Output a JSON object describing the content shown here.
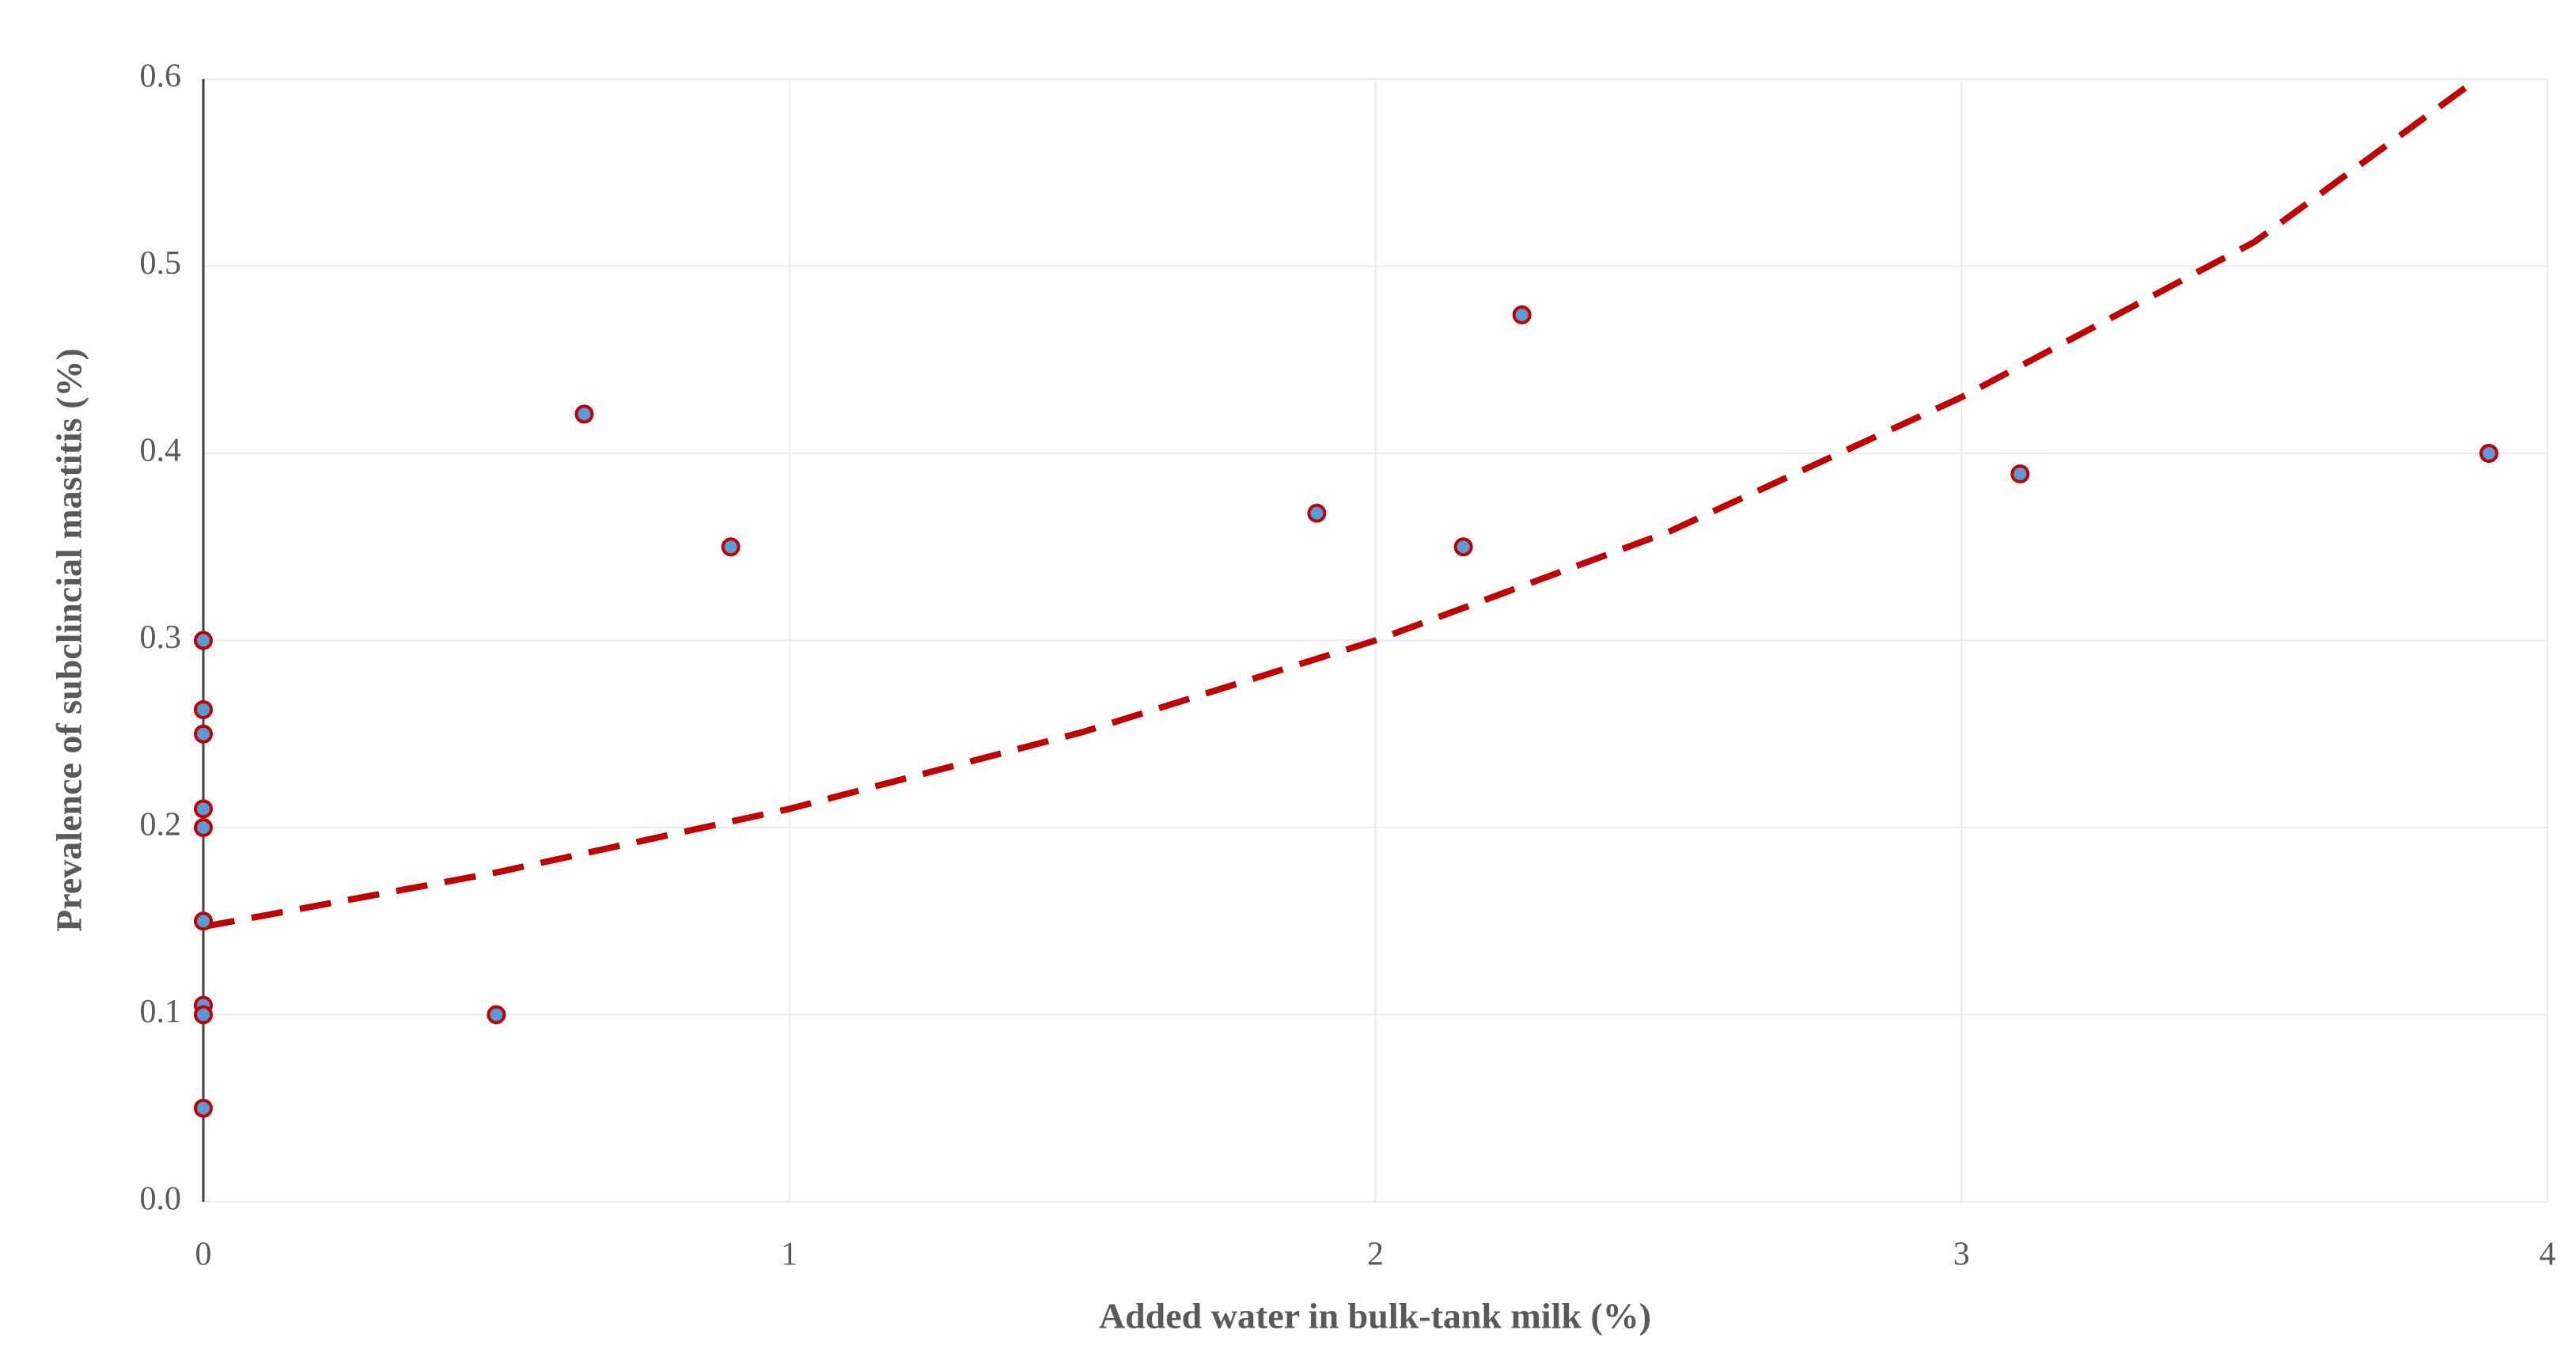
{
  "chart_data": {
    "type": "scatter",
    "x_label": "Added water in bulk-tank milk (%)",
    "y_label": "Prevalence of subclincial mastitis (%)",
    "series": [
      {
        "color": "#5b9bd5",
        "edge_color": "#c00000",
        "x": [
          0,
          0,
          0,
          0,
          0,
          0,
          0,
          0,
          0,
          0.5,
          0.65,
          0.9,
          1.9,
          2.15,
          2.25,
          3.1,
          3.9
        ],
        "values": [
          0.3,
          0.263,
          0.25,
          0.21,
          0.2,
          0.15,
          0.105,
          0.1,
          0.05,
          0.1,
          0.421,
          0.35,
          0.368,
          0.35,
          0.474,
          0.389,
          0.4
        ]
      },
      {
        "type": "trendline",
        "color": "#c00000",
        "x": [
          0,
          0.5,
          1,
          1.5,
          2,
          2.5,
          3,
          3.5,
          3.88
        ],
        "values": [
          0.147,
          0.176,
          0.21,
          0.251,
          0.3,
          0.358,
          0.43,
          0.513,
          0.6
        ]
      }
    ],
    "xlim": [
      0,
      4
    ],
    "xticks": [
      0,
      1,
      2,
      3,
      4
    ],
    "ylim": [
      0,
      0.6
    ],
    "yticks": [
      {
        "value": 0,
        "label": "0.0"
      },
      0.1,
      0.2,
      0.3,
      0.4,
      0.5,
      0.6
    ],
    "grid": true
  }
}
